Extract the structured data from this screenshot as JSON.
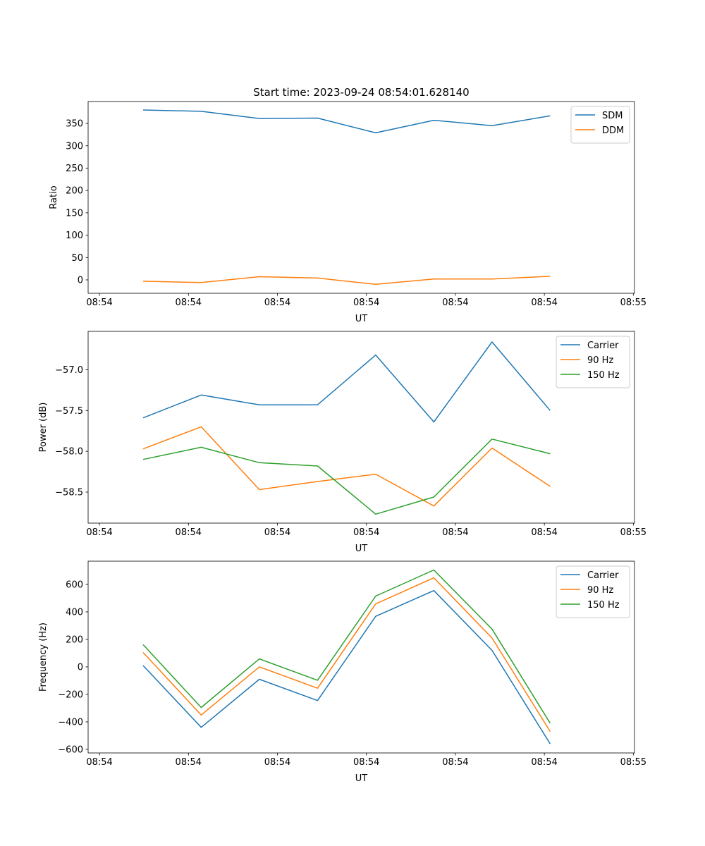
{
  "title": "Start time: 2023-09-24 08:54:01.628140",
  "chart_data": [
    {
      "type": "line",
      "title": "Start time: 2023-09-24 08:54:01.628140",
      "xlabel": "UT",
      "ylabel": "Ratio",
      "x": [
        0,
        1,
        2,
        3,
        4,
        5,
        6,
        7
      ],
      "xlim": [
        -0.945,
        8.45
      ],
      "xticks": [
        -0.75,
        0.78,
        2.31,
        3.84,
        5.37,
        6.9,
        8.43
      ],
      "xtick_labels": [
        "08:54",
        "08:54",
        "08:54",
        "08:54",
        "08:54",
        "08:54",
        "08:55"
      ],
      "ylim": [
        -30,
        399
      ],
      "yticks": [
        0,
        50,
        100,
        150,
        200,
        250,
        300,
        350
      ],
      "ytick_labels": [
        "0",
        "50",
        "100",
        "150",
        "200",
        "250",
        "300",
        "350"
      ],
      "legend_position": "top-right",
      "series": [
        {
          "name": "SDM",
          "color": "#1f77b4",
          "values": [
            380,
            377,
            361,
            362,
            329,
            357,
            345,
            367
          ]
        },
        {
          "name": "DDM",
          "color": "#ff7f0e",
          "values": [
            -3,
            -6,
            7,
            4,
            -10,
            2,
            2,
            8
          ]
        }
      ]
    },
    {
      "type": "line",
      "xlabel": "UT",
      "ylabel": "Power (dB)",
      "x": [
        0,
        1,
        2,
        3,
        4,
        5,
        6,
        7
      ],
      "xlim": [
        -0.945,
        8.45
      ],
      "xticks": [
        -0.75,
        0.78,
        2.31,
        3.84,
        5.37,
        6.9,
        8.43
      ],
      "xtick_labels": [
        "08:54",
        "08:54",
        "08:54",
        "08:54",
        "08:54",
        "08:54",
        "08:55"
      ],
      "ylim": [
        -58.88,
        -56.53
      ],
      "yticks": [
        -58.5,
        -58.0,
        -57.5,
        -57.0
      ],
      "ytick_labels": [
        "−58.5",
        "−58.0",
        "−57.5",
        "−57.0"
      ],
      "legend_position": "top-right",
      "series": [
        {
          "name": "Carrier",
          "color": "#1f77b4",
          "values": [
            -57.59,
            -57.31,
            -57.43,
            -57.43,
            -56.82,
            -57.64,
            -56.66,
            -57.5
          ]
        },
        {
          "name": "90 Hz",
          "color": "#ff7f0e",
          "values": [
            -57.97,
            -57.7,
            -58.47,
            -58.37,
            -58.28,
            -58.67,
            -57.96,
            -58.43
          ]
        },
        {
          "name": "150 Hz",
          "color": "#2ca02c",
          "values": [
            -58.1,
            -57.95,
            -58.14,
            -58.18,
            -58.77,
            -58.56,
            -57.85,
            -58.03
          ]
        }
      ]
    },
    {
      "type": "line",
      "xlabel": "UT",
      "ylabel": "Frequency (Hz)",
      "x": [
        0,
        1,
        2,
        3,
        4,
        5,
        6,
        7
      ],
      "xlim": [
        -0.945,
        8.45
      ],
      "xticks": [
        -0.75,
        0.78,
        2.31,
        3.84,
        5.37,
        6.9,
        8.43
      ],
      "xtick_labels": [
        "08:54",
        "08:54",
        "08:54",
        "08:54",
        "08:54",
        "08:54",
        "08:55"
      ],
      "ylim": [
        -626,
        769
      ],
      "yticks": [
        -600,
        -400,
        -200,
        0,
        200,
        400,
        600
      ],
      "ytick_labels": [
        "−600",
        "−400",
        "−200",
        "0",
        "200",
        "400",
        "600"
      ],
      "legend_position": "top-right",
      "series": [
        {
          "name": "Carrier",
          "color": "#1f77b4",
          "values": [
            10,
            -440,
            -90,
            -245,
            368,
            555,
            120,
            -560
          ]
        },
        {
          "name": "90 Hz",
          "color": "#ff7f0e",
          "values": [
            105,
            -350,
            0,
            -155,
            458,
            648,
            210,
            -470
          ]
        },
        {
          "name": "150 Hz",
          "color": "#2ca02c",
          "values": [
            162,
            -295,
            58,
            -97,
            515,
            705,
            275,
            -410
          ]
        }
      ]
    }
  ]
}
